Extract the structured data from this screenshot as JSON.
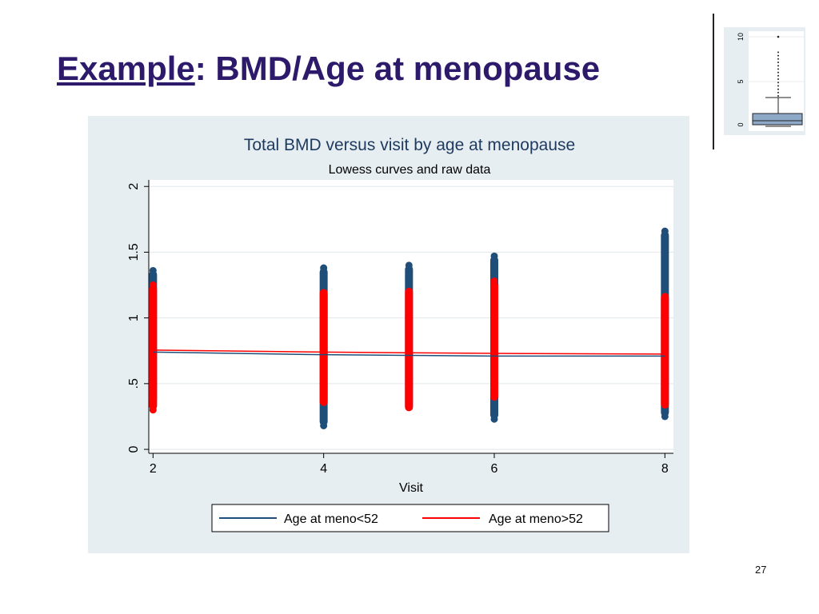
{
  "slide": {
    "title_underlined": "Example",
    "title_rest": ": BMD/Age at menopause",
    "page_number": "27"
  },
  "inset": {
    "type": "boxplot",
    "tick_labels": [
      "0",
      "5",
      "10"
    ]
  },
  "colors": {
    "title": "#2e1a6b",
    "panel_bg": "#e6eef2",
    "series1": "#1f4e79",
    "series2": "#ff0000"
  },
  "chart_data": {
    "type": "scatter",
    "title": "Total BMD versus visit by age at menopause",
    "subtitle": "Lowess curves and raw data",
    "xlabel": "Visit",
    "ylabel": "",
    "x_ticks": [
      2,
      4,
      6,
      8
    ],
    "x_tick_labels": [
      "2",
      "4",
      "6",
      "8"
    ],
    "y_ticks": [
      0,
      0.5,
      1,
      1.5,
      2
    ],
    "y_tick_labels": [
      "0",
      ".5",
      "1",
      "1.5",
      "2"
    ],
    "xlim": [
      1.95,
      8.1
    ],
    "ylim": [
      -0.03,
      2.05
    ],
    "grid": true,
    "legend_position": "bottom",
    "series": [
      {
        "name": "Age at  meno<52",
        "color": "#1f4e79",
        "raw_ranges": [
          {
            "x": 2,
            "min": 0.35,
            "max": 1.36
          },
          {
            "x": 4,
            "min": 0.18,
            "max": 1.38
          },
          {
            "x": 5,
            "min": 0.3,
            "max": 1.4
          },
          {
            "x": 6,
            "min": 0.23,
            "max": 1.47
          },
          {
            "x": 8,
            "min": 0.25,
            "max": 1.66
          }
        ],
        "outliers": [
          {
            "x": 2,
            "y": 1.36
          },
          {
            "x": 2,
            "y": 1.29
          },
          {
            "x": 4,
            "y": 1.38
          },
          {
            "x": 4,
            "y": 1.3
          },
          {
            "x": 4,
            "y": 0.25
          },
          {
            "x": 4,
            "y": 0.18
          },
          {
            "x": 5,
            "y": 1.4
          },
          {
            "x": 5,
            "y": 1.37
          },
          {
            "x": 5,
            "y": 1.33
          },
          {
            "x": 6,
            "y": 1.47
          },
          {
            "x": 6,
            "y": 1.39
          },
          {
            "x": 6,
            "y": 1.32
          },
          {
            "x": 6,
            "y": 0.27
          },
          {
            "x": 6,
            "y": 0.23
          },
          {
            "x": 8,
            "y": 1.66
          },
          {
            "x": 8,
            "y": 1.33
          },
          {
            "x": 8,
            "y": 1.28
          },
          {
            "x": 8,
            "y": 0.25
          }
        ],
        "lowess": {
          "x": [
            2,
            4,
            5,
            6,
            8
          ],
          "y": [
            0.74,
            0.72,
            0.715,
            0.71,
            0.71
          ]
        }
      },
      {
        "name": "Age at meno>52",
        "color": "#ff0000",
        "raw_ranges": [
          {
            "x": 2,
            "min": 0.3,
            "max": 1.25
          },
          {
            "x": 4,
            "min": 0.33,
            "max": 1.22
          },
          {
            "x": 5,
            "min": 0.29,
            "max": 1.23
          },
          {
            "x": 6,
            "min": 0.37,
            "max": 1.28
          },
          {
            "x": 8,
            "min": 0.31,
            "max": 1.19
          }
        ],
        "outliers": [
          {
            "x": 2,
            "y": 0.3
          },
          {
            "x": 2,
            "y": 1.25
          },
          {
            "x": 6,
            "y": 1.28
          }
        ],
        "lowess": {
          "x": [
            2,
            4,
            5,
            6,
            8
          ],
          "y": [
            0.755,
            0.74,
            0.735,
            0.73,
            0.725
          ]
        }
      }
    ]
  }
}
